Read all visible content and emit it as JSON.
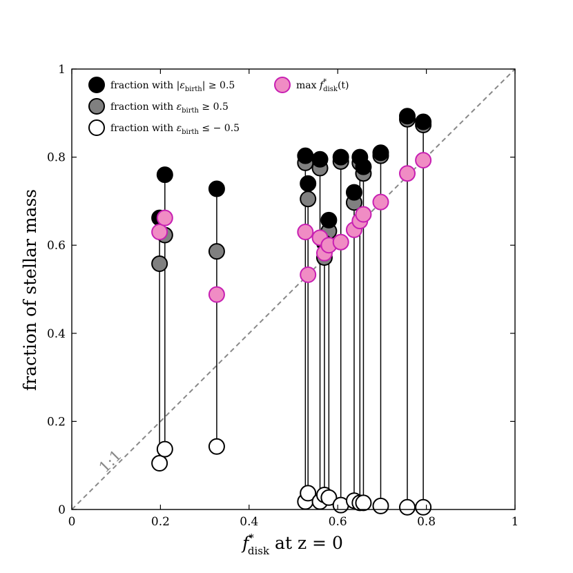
{
  "chart_data": {
    "type": "scatter",
    "title": "",
    "xlabel": {
      "base": "f",
      "sup": "*",
      "sub": "disk",
      "tail": " at z = 0"
    },
    "ylabel": "fraction of stellar mass",
    "xlim": [
      0,
      1
    ],
    "ylim": [
      0,
      1
    ],
    "xticks": [
      "0",
      "0.2",
      "0.4",
      "0.6",
      "0.8",
      "1"
    ],
    "yticks": [
      "0",
      "0.2",
      "0.4",
      "0.6",
      "0.8",
      "1"
    ],
    "xtick_values": [
      0,
      0.2,
      0.4,
      0.6,
      0.8,
      1.0
    ],
    "ytick_values": [
      0,
      0.2,
      0.4,
      0.6,
      0.8,
      1.0
    ],
    "one_to_one_label": "1:1",
    "colors": {
      "abs_fill": "#000000",
      "pos_fill": "#808080",
      "neg_fill": "#ffffff",
      "max_fill": "#f08cc4",
      "max_edge": "#c71fb2",
      "diag": "#888888"
    },
    "legend": [
      {
        "key": "abs",
        "prefix": "fraction with |",
        "eps": "ε",
        "sub": "birth",
        "suffix": "| ≥ 0.5"
      },
      {
        "key": "pos",
        "prefix": "fraction with ",
        "eps": "ε",
        "sub": "birth",
        "suffix": " ≥ 0.5"
      },
      {
        "key": "neg",
        "prefix": "fraction with ",
        "eps": "ε",
        "sub": "birth",
        "suffix": " ≤ − 0.5"
      },
      {
        "key": "max",
        "prefix": "max ",
        "f": "f",
        "sup": "*",
        "sub": "disk",
        "suffix": "(t)"
      }
    ],
    "galaxies": [
      {
        "x": 0.198,
        "abs": 0.662,
        "pos": 0.558,
        "neg": 0.105,
        "max": 0.63
      },
      {
        "x": 0.21,
        "abs": 0.76,
        "pos": 0.623,
        "neg": 0.137,
        "max": 0.662
      },
      {
        "x": 0.327,
        "abs": 0.728,
        "pos": 0.586,
        "neg": 0.143,
        "max": 0.488
      },
      {
        "x": 0.527,
        "abs": 0.803,
        "pos": 0.787,
        "neg": 0.018,
        "max": 0.63
      },
      {
        "x": 0.533,
        "abs": 0.74,
        "pos": 0.705,
        "neg": 0.037,
        "max": 0.533
      },
      {
        "x": 0.56,
        "abs": 0.795,
        "pos": 0.775,
        "neg": 0.018,
        "max": 0.617
      },
      {
        "x": 0.57,
        "abs": 0.605,
        "pos": 0.572,
        "neg": 0.033,
        "max": 0.582
      },
      {
        "x": 0.58,
        "abs": 0.657,
        "pos": 0.632,
        "neg": 0.027,
        "max": 0.6
      },
      {
        "x": 0.607,
        "abs": 0.8,
        "pos": 0.79,
        "neg": 0.01,
        "max": 0.607
      },
      {
        "x": 0.637,
        "abs": 0.72,
        "pos": 0.697,
        "neg": 0.02,
        "max": 0.635
      },
      {
        "x": 0.65,
        "abs": 0.8,
        "pos": 0.787,
        "neg": 0.015,
        "max": 0.655
      },
      {
        "x": 0.658,
        "abs": 0.778,
        "pos": 0.763,
        "neg": 0.015,
        "max": 0.67
      },
      {
        "x": 0.697,
        "abs": 0.81,
        "pos": 0.803,
        "neg": 0.008,
        "max": 0.698
      },
      {
        "x": 0.757,
        "abs": 0.893,
        "pos": 0.886,
        "neg": 0.005,
        "max": 0.763
      },
      {
        "x": 0.793,
        "abs": 0.88,
        "pos": 0.873,
        "neg": 0.005,
        "max": 0.793
      }
    ]
  }
}
